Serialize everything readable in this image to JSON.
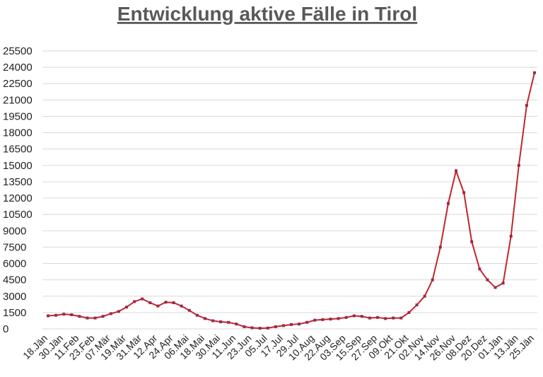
{
  "chart_data": {
    "type": "line",
    "title": "Entwicklung aktive Fälle in Tirol",
    "categories": [
      "18.Jän",
      null,
      "30.Jän",
      null,
      "11.Feb",
      null,
      "23.Feb",
      null,
      "07.Mär",
      null,
      "19.Mär",
      null,
      "31.Mär",
      null,
      "12.Apr",
      null,
      "24.Apr",
      null,
      "06.Mai",
      null,
      "18.Mai",
      null,
      "30.Mai",
      null,
      "11.Jun",
      null,
      "23.Jun",
      null,
      "05.Jul",
      null,
      "17.Jul",
      null,
      "29.Jul",
      null,
      "10.Aug",
      null,
      "22.Aug",
      null,
      "03.Sep",
      null,
      "15.Sep",
      null,
      "27.Sep",
      null,
      "09.Okt",
      null,
      "21.Okt",
      null,
      "02.Nov",
      null,
      "14.Nov",
      null,
      "26.Nov",
      null,
      "08.Dez",
      null,
      "20.Dez",
      null,
      "01.Jän",
      null,
      "13.Jän",
      null,
      "25.Jän"
    ],
    "series": [
      {
        "name": "aktive Fälle",
        "color": "#c0272d",
        "marker_color": "#9b2a4a",
        "values": [
          1200,
          1250,
          1350,
          1300,
          1150,
          1000,
          1000,
          1150,
          1400,
          1600,
          2000,
          2500,
          2750,
          2400,
          2100,
          2450,
          2400,
          2100,
          1700,
          1250,
          950,
          750,
          650,
          600,
          450,
          200,
          100,
          60,
          80,
          200,
          300,
          400,
          450,
          600,
          800,
          850,
          900,
          950,
          1050,
          1200,
          1150,
          1000,
          1050,
          950,
          1000,
          1000,
          1500,
          2200,
          3000,
          4500,
          7500,
          11500,
          14500,
          12500,
          8000,
          5500,
          4500,
          3800,
          4200,
          8500,
          15000,
          20500,
          23500
        ]
      }
    ],
    "ylim": [
      0,
      25500
    ],
    "yticks": [
      0,
      1500,
      3000,
      4500,
      6000,
      7500,
      9000,
      10500,
      12000,
      13500,
      15000,
      16500,
      18000,
      19500,
      21000,
      22500,
      24000,
      25500
    ],
    "grid": true
  }
}
